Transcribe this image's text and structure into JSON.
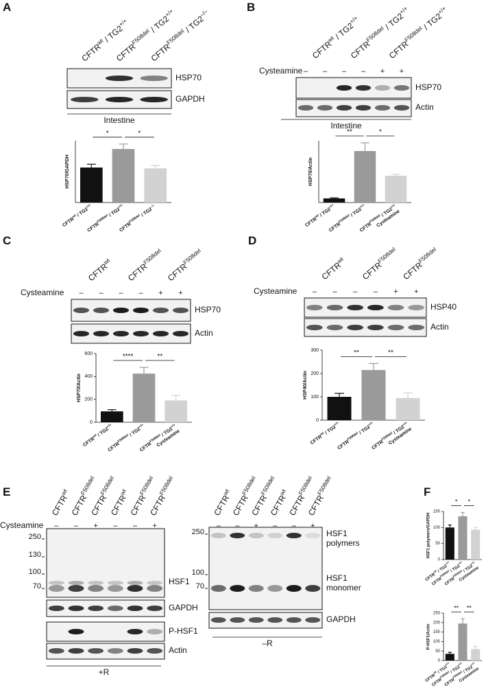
{
  "panels": [
    {
      "letter": "A",
      "lanes": [
        [
          "CFTR",
          "wt",
          " / TG2",
          "+/+"
        ],
        [
          "CFTR",
          "F508del",
          " / TG2",
          "+/+"
        ],
        [
          "CFTR",
          "F508del",
          " / TG2",
          "–/–"
        ]
      ],
      "blots": [
        "HSP70",
        "GAPDH"
      ],
      "tissue": "Intestine",
      "chart": {
        "type": "bar",
        "ylabel": "HSP70/GAPDH",
        "ylim": [
          0,
          150
        ],
        "categories": [
          {
            "parts": [
              "CFTR",
              "wt",
              " / TG2",
              "+/+"
            ]
          },
          {
            "parts": [
              "CFTR",
              "F508del",
              " / TG2",
              "+/+"
            ]
          },
          {
            "parts": [
              "CFTR",
              "F508del",
              " / TG2",
              "–/–"
            ]
          }
        ],
        "values": [
          85,
          130,
          83
        ],
        "errors": [
          8,
          12,
          7
        ],
        "colors": [
          "#111111",
          "#9a9a9a",
          "#d2d2d2"
        ],
        "significance": [
          "*",
          "*"
        ]
      }
    },
    {
      "letter": "B",
      "lanes": [
        [
          "CFTR",
          "wt",
          " / TG2",
          "+/+"
        ],
        [
          "CFTR",
          "F508del",
          " / TG2",
          "+/+"
        ],
        [
          "CFTR",
          "F508del",
          " / TG2",
          "+/+"
        ]
      ],
      "cysteamine": {
        "label": "Cysteamine",
        "signs": [
          "–",
          "–",
          "–",
          "–",
          "+",
          "+"
        ]
      },
      "blots": [
        "HSP70",
        "Actin"
      ],
      "tissue": "Intestine",
      "chart": {
        "type": "bar",
        "ylabel": "HSP70/Actin",
        "ylim": [
          0,
          1500
        ],
        "categories": [
          {
            "parts": [
              "CFTR",
              "wt",
              " / TG2",
              "+/+"
            ]
          },
          {
            "parts": [
              "CFTR",
              "F508del",
              " / TG2",
              "+/+"
            ]
          },
          {
            "parts": [
              "CFTR",
              "F508del",
              " / TG2",
              "+/+"
            ],
            "line2": "Cysteamine"
          }
        ],
        "values": [
          100,
          1250,
          650
        ],
        "errors": [
          15,
          200,
          35
        ],
        "colors": [
          "#111111",
          "#9a9a9a",
          "#d2d2d2"
        ],
        "significance": [
          "**",
          "*"
        ]
      }
    },
    {
      "letter": "C",
      "lanes": [
        [
          "CFTR",
          "wt"
        ],
        [
          "CFTR",
          "F508del"
        ],
        [
          "CFTR",
          "F508del"
        ]
      ],
      "cysteamine": {
        "label": "Cysteamine",
        "signs": [
          "–",
          "–",
          "–",
          "–",
          "+",
          "+"
        ]
      },
      "blots": [
        "HSP70",
        "Actin"
      ],
      "chart": {
        "type": "bar",
        "ylabel": "HSP70/Actin",
        "ylim": [
          0,
          600
        ],
        "yticks": [
          0,
          200,
          400,
          600
        ],
        "categories": [
          {
            "parts": [
              "CFTR",
              "wt",
              " / TG2",
              "+/+"
            ]
          },
          {
            "parts": [
              "CFTR",
              "F508del",
              " / TG2",
              "+/+"
            ]
          },
          {
            "parts": [
              "CFTR",
              "F508del",
              " / TG2",
              "+/+"
            ],
            "line2": "Cysteamine"
          }
        ],
        "values": [
          95,
          425,
          190
        ],
        "errors": [
          15,
          55,
          45
        ],
        "colors": [
          "#111111",
          "#9a9a9a",
          "#d2d2d2"
        ],
        "significance": [
          "****",
          "**"
        ]
      }
    },
    {
      "letter": "D",
      "lanes": [
        [
          "CFTR",
          "wt"
        ],
        [
          "CFTR",
          "F508del"
        ],
        [
          "CFTR",
          "F508del"
        ]
      ],
      "cysteamine": {
        "label": "Cysteamine",
        "signs": [
          "–",
          "–",
          "–",
          "–",
          "+",
          "+"
        ]
      },
      "blots": [
        "HSP40",
        "Actin"
      ],
      "chart": {
        "type": "bar",
        "ylabel": "HSP40/Actin",
        "ylim": [
          0,
          300
        ],
        "yticks": [
          0,
          100,
          200,
          300
        ],
        "categories": [
          {
            "parts": [
              "CFTR",
              "wt",
              " / TG2",
              "+/+"
            ]
          },
          {
            "parts": [
              "CFTR",
              "F508del",
              " / TG2",
              "+/+"
            ]
          },
          {
            "parts": [
              "CFTR",
              "F508del",
              " / TG2",
              "+/+"
            ],
            "line2": "Cysteamine"
          }
        ],
        "values": [
          100,
          215,
          95
        ],
        "errors": [
          15,
          28,
          22
        ],
        "colors": [
          "#111111",
          "#9a9a9a",
          "#d2d2d2"
        ],
        "significance": [
          "**",
          "**"
        ]
      }
    },
    {
      "letter": "E",
      "blot_groups": [
        {
          "lanes": [
            [
              "CFTR",
              "wt"
            ],
            [
              "CFTR",
              "F508del"
            ],
            [
              "CFTR",
              "F508del"
            ],
            [
              "CFTR",
              "wt"
            ],
            [
              "CFTR",
              "F508del"
            ],
            [
              "CFTR",
              "F508del"
            ]
          ],
          "cysteamine": {
            "label": "Cysteamine",
            "signs": [
              "–",
              "–",
              "+",
              "–",
              "–",
              "+"
            ]
          },
          "markers": [
            250,
            130,
            100,
            70
          ],
          "blots": [
            "HSF1",
            "GAPDH",
            "P-HSF1",
            "Actin"
          ],
          "condition": "+R"
        },
        {
          "lanes": [
            [
              "CFTR",
              "wt"
            ],
            [
              "CFTR",
              "F508del"
            ],
            [
              "CFTR",
              "F508del"
            ],
            [
              "CFTR",
              "wt"
            ],
            [
              "CFTR",
              "F508del"
            ],
            [
              "CFTR",
              "F508del"
            ]
          ],
          "cysteamine": {
            "signs": [
              "–",
              "–",
              "+",
              "–",
              "–",
              "+"
            ]
          },
          "markers": [
            250,
            100,
            70
          ],
          "blots": [
            [
              "HSF1",
              "polymers"
            ],
            [
              "HSF1",
              "monomer"
            ],
            "GAPDH"
          ],
          "condition": "–R"
        }
      ]
    },
    {
      "letter": "F",
      "charts": [
        {
          "type": "bar",
          "ylabel": "HSF1 polymers/GAPDH",
          "ylim": [
            0,
            150
          ],
          "yticks": [
            0,
            50,
            100,
            150
          ],
          "categories": [
            {
              "parts": [
                "CFTR",
                "wt",
                " / TG2",
                "+/+"
              ]
            },
            {
              "parts": [
                "CFTR",
                "F508del",
                " / TG2",
                "+/+"
              ]
            },
            {
              "parts": [
                "CFTR",
                "F508del",
                " / TG2",
                "+/+"
              ],
              "line2": "Cysteamine"
            }
          ],
          "values": [
            100,
            135,
            93
          ],
          "errors": [
            8,
            12,
            7
          ],
          "colors": [
            "#111111",
            "#9a9a9a",
            "#d2d2d2"
          ],
          "significance": [
            "*",
            "*"
          ]
        },
        {
          "type": "bar",
          "ylabel": "P-HSF1/Actin",
          "ylim": [
            0,
            250
          ],
          "yticks": [
            0,
            50,
            100,
            150,
            200,
            250
          ],
          "categories": [
            {
              "parts": [
                "CFTR",
                "wt",
                " / TG2",
                "+/+"
              ]
            },
            {
              "parts": [
                "CFTR",
                "F508del",
                " / TG2",
                "+/+"
              ]
            },
            {
              "parts": [
                "CFTR",
                "F508del",
                " / TG2",
                "+/+"
              ],
              "line2": "Cysteamine"
            }
          ],
          "values": [
            35,
            195,
            60
          ],
          "errors": [
            8,
            25,
            15
          ],
          "colors": [
            "#111111",
            "#9a9a9a",
            "#d2d2d2"
          ],
          "significance": [
            "**",
            "**"
          ]
        }
      ]
    }
  ]
}
